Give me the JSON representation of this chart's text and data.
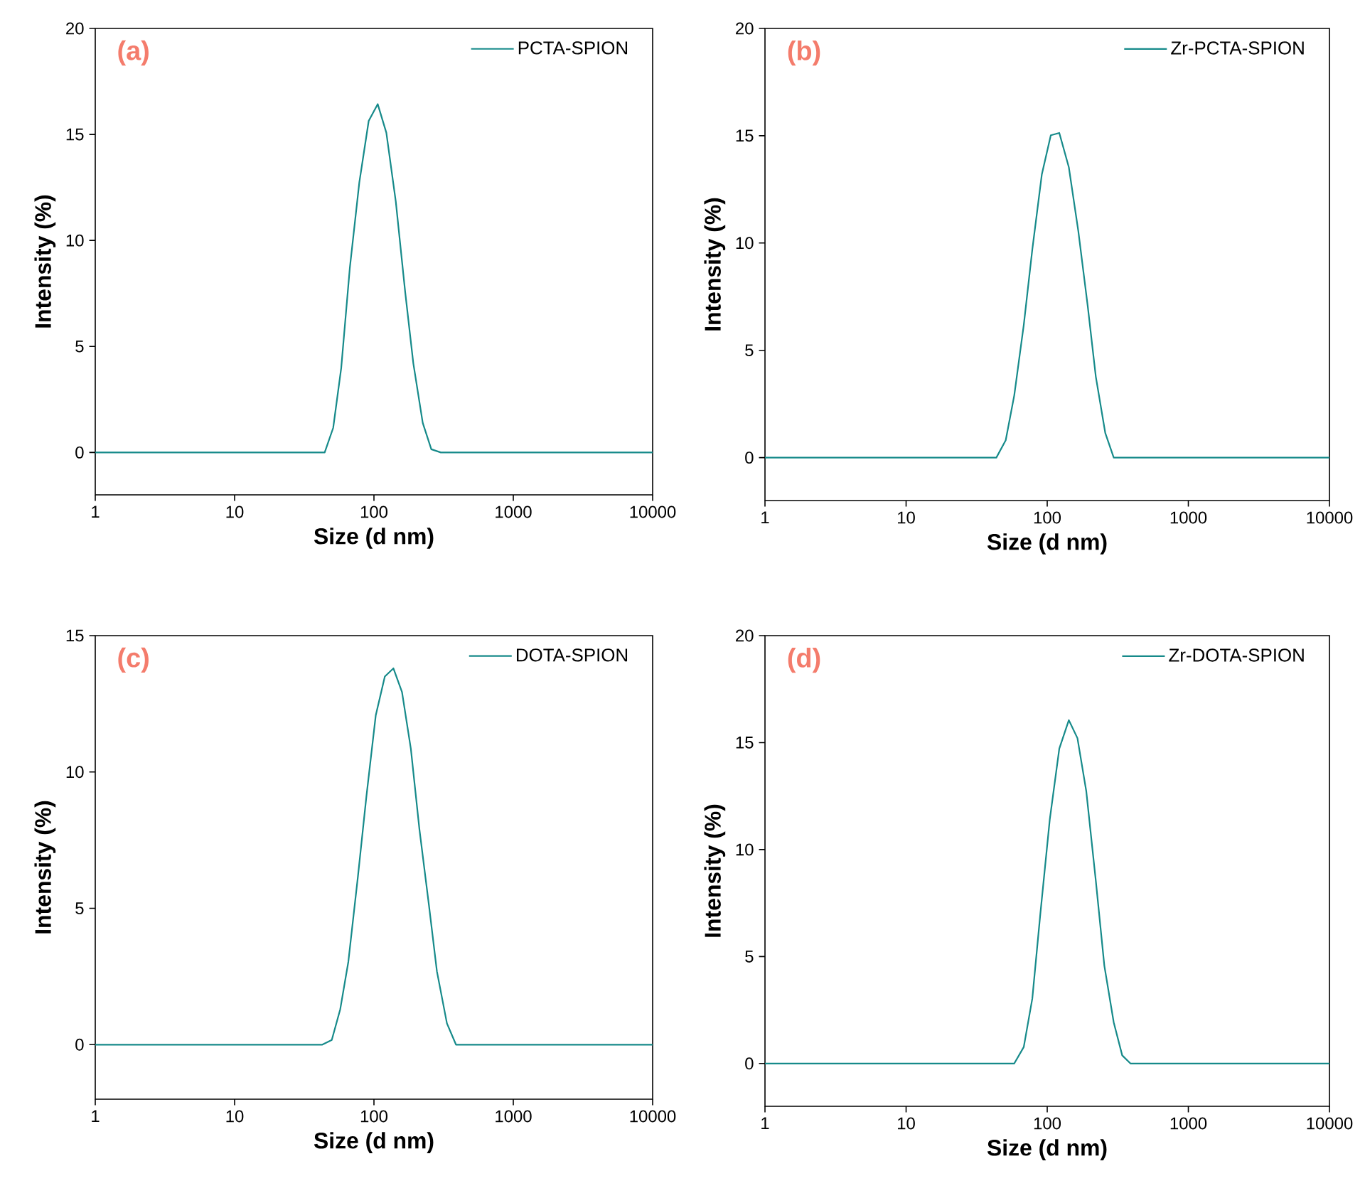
{
  "chart_data": [
    {
      "type": "line",
      "xlabel": "Size (d nm)",
      "ylabel": "Intensity (%)",
      "annotations": [
        "(a)"
      ],
      "log": "x",
      "legend": "top right",
      "xlim": [
        1,
        10000
      ],
      "xticks": [
        1,
        10,
        100,
        1000,
        10000
      ],
      "ylim": [
        -2,
        20
      ],
      "yticks": [
        0,
        5,
        10,
        15,
        20
      ],
      "x": [
        1,
        44.3,
        51,
        58.2,
        67.1,
        78.5,
        91.7,
        106.4,
        122.7,
        143.5,
        167.6,
        191.7,
        224,
        258,
        302,
        10000
      ],
      "series": [
        {
          "name": "PCTA-SPION",
          "color": "#168a8a",
          "values": [
            0,
            0,
            1.16,
            3.97,
            8.69,
            12.73,
            15.64,
            16.43,
            15.08,
            11.83,
            7.56,
            4.2,
            1.39,
            0.15,
            0,
            0
          ]
        }
      ]
    },
    {
      "type": "line",
      "xlabel": "Size (d nm)",
      "ylabel": "Intensity (%)",
      "annotations": [
        "(b)"
      ],
      "log": "x",
      "legend": "top right",
      "xlim": [
        1,
        10000
      ],
      "xticks": [
        1,
        10,
        100,
        1000,
        10000
      ],
      "ylim": [
        -2,
        20
      ],
      "yticks": [
        0,
        5,
        10,
        15,
        20
      ],
      "x": [
        1,
        43.6,
        50.8,
        58.4,
        68.2,
        78.4,
        91.6,
        106,
        121.8,
        142.3,
        166,
        193.7,
        221,
        258,
        296,
        10000
      ],
      "series": [
        {
          "name": "Zr-PCTA-SPION",
          "color": "#168a8a",
          "values": [
            0,
            0,
            0.81,
            2.9,
            6.18,
            9.69,
            13.2,
            15.02,
            15.13,
            13.53,
            10.57,
            7.06,
            3.77,
            1.14,
            0,
            0
          ]
        }
      ]
    },
    {
      "type": "line",
      "xlabel": "Size (d nm)",
      "ylabel": "Intensity (%)",
      "annotations": [
        "(c)"
      ],
      "log": "x",
      "legend": "top right",
      "xlim": [
        1,
        10000
      ],
      "xticks": [
        1,
        10,
        100,
        1000,
        10000
      ],
      "ylim": [
        -2,
        15
      ],
      "yticks": [
        0,
        5,
        10,
        15
      ],
      "x": [
        1,
        42.6,
        49.8,
        57.3,
        65.5,
        76.7,
        88.3,
        103,
        119.7,
        138,
        159,
        184,
        212,
        248,
        283,
        334,
        388,
        10000
      ],
      "series": [
        {
          "name": "DOTA-SPION",
          "color": "#168a8a",
          "values": [
            0,
            0,
            0.17,
            1.3,
            3.04,
            6.16,
            9.11,
            12.07,
            13.5,
            13.8,
            12.93,
            10.85,
            7.9,
            5.12,
            2.69,
            0.78,
            0,
            0
          ]
        }
      ]
    },
    {
      "type": "line",
      "xlabel": "Size (d nm)",
      "ylabel": "Intensity (%)",
      "annotations": [
        "(d)"
      ],
      "log": "x",
      "legend": "top right",
      "xlim": [
        1,
        10000
      ],
      "xticks": [
        1,
        10,
        100,
        1000,
        10000
      ],
      "ylim": [
        -2,
        20
      ],
      "yticks": [
        0,
        5,
        10,
        15,
        20
      ],
      "x": [
        1,
        58.4,
        68.2,
        78.4,
        89.4,
        104.3,
        121.8,
        142.3,
        163.7,
        189,
        221,
        254,
        296,
        340,
        389,
        10000
      ],
      "series": [
        {
          "name": "Zr-DOTA-SPION",
          "color": "#168a8a",
          "values": [
            0,
            0,
            0.77,
            3.03,
            7.0,
            11.41,
            14.72,
            16.05,
            15.21,
            12.74,
            8.54,
            4.57,
            1.92,
            0.38,
            0,
            0
          ]
        }
      ]
    }
  ]
}
